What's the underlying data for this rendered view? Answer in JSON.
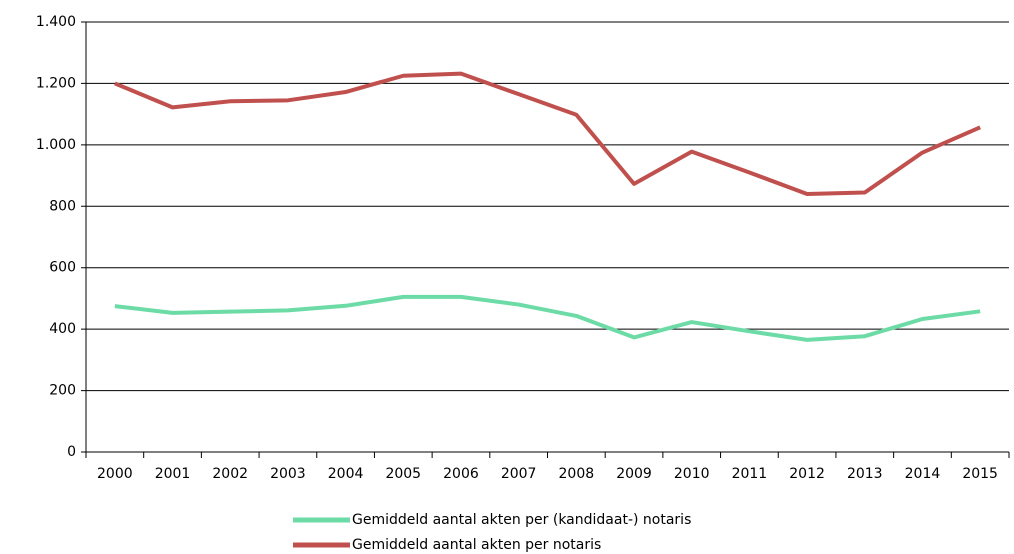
{
  "chart_data": {
    "type": "line",
    "categories": [
      "2000",
      "2001",
      "2002",
      "2003",
      "2004",
      "2005",
      "2006",
      "2007",
      "2008",
      "2009",
      "2010",
      "2011",
      "2012",
      "2013",
      "2014",
      "2015"
    ],
    "series": [
      {
        "name": "Gemiddeld aantal akten per (kandidaat-) notaris",
        "color": "#6ddba6",
        "values": [
          475,
          453,
          457,
          461,
          476,
          505,
          505,
          480,
          443,
          373,
          423,
          393,
          365,
          377,
          433,
          458
        ]
      },
      {
        "name": "Gemiddeld aantal akten per notaris",
        "color": "#c0504d",
        "values": [
          1200,
          1122,
          1142,
          1145,
          1172,
          1225,
          1232,
          1165,
          1098,
          873,
          978,
          910,
          840,
          845,
          975,
          1057
        ]
      }
    ],
    "ylim": [
      0,
      1400
    ],
    "yticks": [
      0,
      200,
      400,
      600,
      800,
      {
        "value": 1000,
        "label": "1.000"
      },
      {
        "value": 1200,
        "label": "1.200"
      },
      {
        "value": 1400,
        "label": "1.400"
      }
    ],
    "grid": true,
    "legend": "bottom"
  }
}
